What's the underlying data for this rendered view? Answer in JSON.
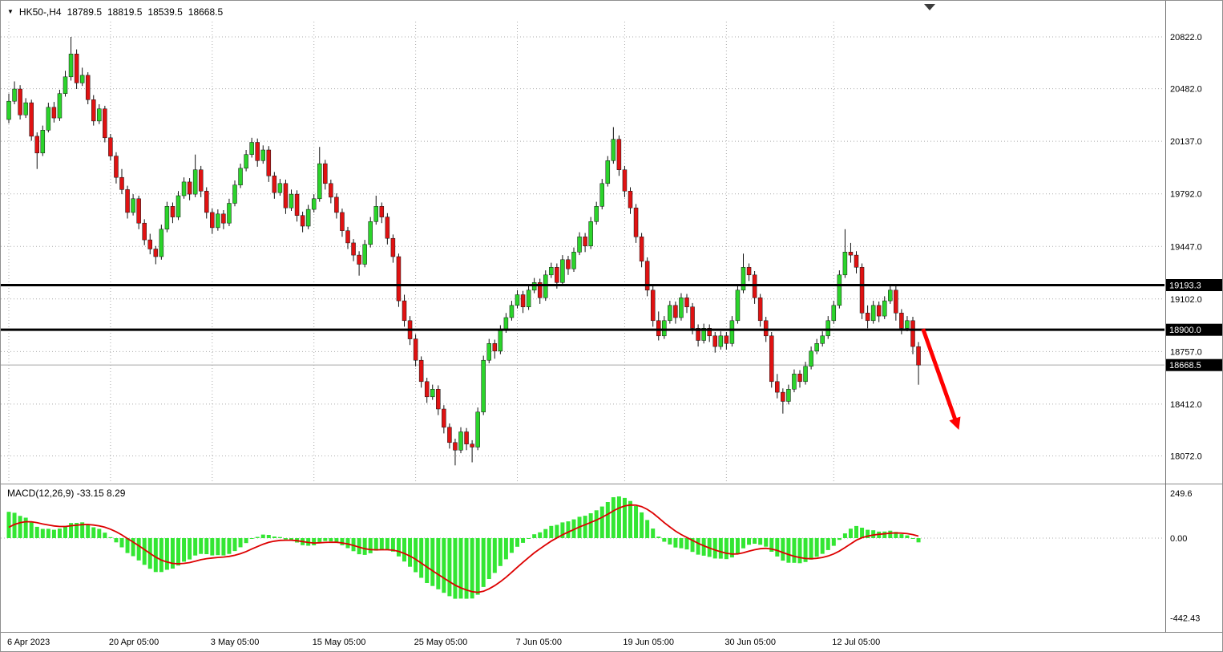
{
  "header": {
    "collapse_icon": "▼",
    "symbol_period": "HK50-,H4",
    "open": "18789.5",
    "high": "18819.5",
    "low": "18539.5",
    "close": "18668.5"
  },
  "chart_data": {
    "type": "candlestick",
    "title": "HK50-,H4",
    "timeframe": "H4",
    "colors": {
      "up": "#2bd42b",
      "down": "#e01212",
      "wick": "#111111",
      "grid": "#ababab",
      "last_price_line": "#a6a6a6",
      "level": "#000000",
      "signal": "#dd0000",
      "histogram": "#33e633",
      "arrow": "#ff0000",
      "axis_text": "#000000",
      "tag_bg": "#000000",
      "tag_text": "#ffffff"
    },
    "y_axis": {
      "ticks": [
        "20822.0",
        "20482.0",
        "20137.0",
        "19792.0",
        "19447.0",
        "19102.0",
        "18757.0",
        "18412.0",
        "18072.0"
      ]
    },
    "x_axis": {
      "labels": [
        {
          "text": "6 Apr 2023",
          "bar": 0
        },
        {
          "text": "20 Apr 05:00",
          "bar": 18
        },
        {
          "text": "3 May 05:00",
          "bar": 36
        },
        {
          "text": "15 May 05:00",
          "bar": 54
        },
        {
          "text": "25 May 05:00",
          "bar": 72
        },
        {
          "text": "7 Jun 05:00",
          "bar": 90
        },
        {
          "text": "19 Jun 05:00",
          "bar": 109
        },
        {
          "text": "30 Jun 05:00",
          "bar": 127
        },
        {
          "text": "12 Jul 05:00",
          "bar": 146
        }
      ]
    },
    "levels": [
      {
        "value": 19193.3,
        "label": "19193.3",
        "color": "#000000"
      },
      {
        "value": 18900.0,
        "label": "18900.0",
        "color": "#000000"
      }
    ],
    "last_price": {
      "value": 18668.5,
      "label": "18668.5"
    },
    "candles": [
      [
        20280,
        20450,
        20255,
        20400
      ],
      [
        20400,
        20530,
        20380,
        20480
      ],
      [
        20480,
        20505,
        20280,
        20310
      ],
      [
        20310,
        20420,
        20290,
        20390
      ],
      [
        20390,
        20410,
        20140,
        20170
      ],
      [
        20170,
        20195,
        19955,
        20060
      ],
      [
        20060,
        20240,
        20040,
        20210
      ],
      [
        20210,
        20390,
        20195,
        20360
      ],
      [
        20360,
        20395,
        20260,
        20290
      ],
      [
        20290,
        20475,
        20270,
        20450
      ],
      [
        20450,
        20600,
        20430,
        20560
      ],
      [
        20560,
        20822,
        20535,
        20710
      ],
      [
        20710,
        20740,
        20480,
        20520
      ],
      [
        20520,
        20620,
        20500,
        20570
      ],
      [
        20570,
        20590,
        20380,
        20410
      ],
      [
        20410,
        20440,
        20240,
        20270
      ],
      [
        20270,
        20380,
        20250,
        20350
      ],
      [
        20350,
        20370,
        20130,
        20160
      ],
      [
        20160,
        20185,
        20010,
        20040
      ],
      [
        20040,
        20065,
        19860,
        19900
      ],
      [
        19900,
        19955,
        19790,
        19820
      ],
      [
        19820,
        19845,
        19630,
        19670
      ],
      [
        19670,
        19790,
        19650,
        19760
      ],
      [
        19760,
        19780,
        19560,
        19600
      ],
      [
        19600,
        19625,
        19455,
        19490
      ],
      [
        19490,
        19530,
        19395,
        19430
      ],
      [
        19430,
        19450,
        19330,
        19380
      ],
      [
        19380,
        19590,
        19360,
        19560
      ],
      [
        19560,
        19740,
        19540,
        19710
      ],
      [
        19710,
        19735,
        19600,
        19640
      ],
      [
        19640,
        19810,
        19620,
        19780
      ],
      [
        19780,
        19900,
        19760,
        19870
      ],
      [
        19870,
        19895,
        19750,
        19790
      ],
      [
        19790,
        20050,
        19770,
        19950
      ],
      [
        19950,
        19975,
        19770,
        19810
      ],
      [
        19810,
        19835,
        19630,
        19670
      ],
      [
        19670,
        19695,
        19530,
        19570
      ],
      [
        19570,
        19690,
        19550,
        19660
      ],
      [
        19660,
        19685,
        19560,
        19600
      ],
      [
        19600,
        19760,
        19580,
        19730
      ],
      [
        19730,
        19880,
        19710,
        19850
      ],
      [
        19850,
        19990,
        19830,
        19960
      ],
      [
        19960,
        20080,
        19940,
        20050
      ],
      [
        20050,
        20160,
        20030,
        20130
      ],
      [
        20130,
        20155,
        19970,
        20010
      ],
      [
        20010,
        20110,
        19990,
        20080
      ],
      [
        20080,
        20105,
        19870,
        19910
      ],
      [
        19910,
        19935,
        19760,
        19800
      ],
      [
        19800,
        19890,
        19780,
        19860
      ],
      [
        19860,
        19885,
        19660,
        19700
      ],
      [
        19700,
        19820,
        19680,
        19790
      ],
      [
        19790,
        19815,
        19610,
        19650
      ],
      [
        19650,
        19675,
        19540,
        19580
      ],
      [
        19580,
        19720,
        19560,
        19690
      ],
      [
        19690,
        19790,
        19670,
        19760
      ],
      [
        19760,
        20100,
        19740,
        19990
      ],
      [
        19990,
        20015,
        19820,
        19860
      ],
      [
        19860,
        19885,
        19730,
        19770
      ],
      [
        19770,
        19795,
        19630,
        19670
      ],
      [
        19670,
        19695,
        19510,
        19550
      ],
      [
        19550,
        19575,
        19430,
        19470
      ],
      [
        19470,
        19495,
        19350,
        19390
      ],
      [
        19390,
        19415,
        19255,
        19330
      ],
      [
        19330,
        19490,
        19310,
        19460
      ],
      [
        19460,
        19640,
        19440,
        19610
      ],
      [
        19610,
        19780,
        19590,
        19710
      ],
      [
        19710,
        19735,
        19600,
        19640
      ],
      [
        19640,
        19665,
        19460,
        19500
      ],
      [
        19500,
        19525,
        19340,
        19380
      ],
      [
        19380,
        19400,
        19050,
        19090
      ],
      [
        19090,
        19130,
        18920,
        18960
      ],
      [
        18960,
        18990,
        18800,
        18840
      ],
      [
        18840,
        18870,
        18660,
        18700
      ],
      [
        18700,
        18725,
        18520,
        18560
      ],
      [
        18560,
        18585,
        18420,
        18460
      ],
      [
        18460,
        18540,
        18440,
        18510
      ],
      [
        18510,
        18535,
        18340,
        18380
      ],
      [
        18380,
        18405,
        18220,
        18260
      ],
      [
        18260,
        18285,
        18120,
        18160
      ],
      [
        18160,
        18185,
        18010,
        18110
      ],
      [
        18110,
        18260,
        18090,
        18230
      ],
      [
        18230,
        18255,
        18110,
        18150
      ],
      [
        18150,
        18175,
        18030,
        18130
      ],
      [
        18130,
        18390,
        18110,
        18360
      ],
      [
        18360,
        18730,
        18340,
        18700
      ],
      [
        18700,
        18840,
        18680,
        18810
      ],
      [
        18810,
        18835,
        18710,
        18760
      ],
      [
        18760,
        18930,
        18740,
        18900
      ],
      [
        18900,
        19010,
        18880,
        18980
      ],
      [
        18980,
        19090,
        18960,
        19060
      ],
      [
        19060,
        19160,
        19040,
        19130
      ],
      [
        19130,
        19155,
        19010,
        19050
      ],
      [
        19050,
        19190,
        19030,
        19160
      ],
      [
        19160,
        19240,
        19140,
        19210
      ],
      [
        19210,
        19235,
        19070,
        19110
      ],
      [
        19110,
        19290,
        19090,
        19260
      ],
      [
        19260,
        19340,
        19240,
        19310
      ],
      [
        19310,
        19335,
        19170,
        19210
      ],
      [
        19210,
        19390,
        19190,
        19360
      ],
      [
        19360,
        19385,
        19260,
        19300
      ],
      [
        19300,
        19440,
        19280,
        19410
      ],
      [
        19410,
        19540,
        19390,
        19510
      ],
      [
        19510,
        19535,
        19410,
        19450
      ],
      [
        19450,
        19640,
        19430,
        19610
      ],
      [
        19610,
        19740,
        19590,
        19710
      ],
      [
        19710,
        19890,
        19690,
        19860
      ],
      [
        19860,
        20040,
        19840,
        20010
      ],
      [
        20010,
        20230,
        19990,
        20150
      ],
      [
        20150,
        20175,
        19910,
        19950
      ],
      [
        19950,
        19975,
        19770,
        19810
      ],
      [
        19810,
        19835,
        19660,
        19700
      ],
      [
        19700,
        19725,
        19470,
        19510
      ],
      [
        19510,
        19535,
        19310,
        19350
      ],
      [
        19350,
        19375,
        19120,
        19160
      ],
      [
        19160,
        19185,
        18920,
        18960
      ],
      [
        18960,
        19020,
        18830,
        18860
      ],
      [
        18860,
        18990,
        18840,
        18960
      ],
      [
        18960,
        19090,
        18940,
        19060
      ],
      [
        19060,
        19085,
        18940,
        18980
      ],
      [
        18980,
        19140,
        18960,
        19110
      ],
      [
        19110,
        19135,
        19010,
        19050
      ],
      [
        19050,
        19075,
        18870,
        18910
      ],
      [
        18910,
        18935,
        18790,
        18830
      ],
      [
        18830,
        18940,
        18810,
        18910
      ],
      [
        18910,
        18935,
        18820,
        18860
      ],
      [
        18860,
        18885,
        18750,
        18790
      ],
      [
        18790,
        18890,
        18770,
        18860
      ],
      [
        18860,
        18885,
        18770,
        18810
      ],
      [
        18810,
        18990,
        18790,
        18960
      ],
      [
        18960,
        19190,
        18940,
        19160
      ],
      [
        19160,
        19400,
        19140,
        19310
      ],
      [
        19310,
        19335,
        19220,
        19260
      ],
      [
        19260,
        19285,
        19070,
        19110
      ],
      [
        19110,
        19135,
        18920,
        18960
      ],
      [
        18960,
        18985,
        18820,
        18860
      ],
      [
        18860,
        18885,
        18520,
        18560
      ],
      [
        18560,
        18610,
        18450,
        18490
      ],
      [
        18490,
        18515,
        18350,
        18430
      ],
      [
        18430,
        18540,
        18410,
        18510
      ],
      [
        18510,
        18640,
        18490,
        18610
      ],
      [
        18610,
        18635,
        18520,
        18560
      ],
      [
        18560,
        18690,
        18540,
        18660
      ],
      [
        18660,
        18790,
        18640,
        18760
      ],
      [
        18760,
        18840,
        18740,
        18810
      ],
      [
        18810,
        18890,
        18790,
        18860
      ],
      [
        18860,
        18990,
        18840,
        18960
      ],
      [
        18960,
        19090,
        18940,
        19060
      ],
      [
        19060,
        19290,
        19040,
        19260
      ],
      [
        19260,
        19560,
        19240,
        19410
      ],
      [
        19410,
        19470,
        19340,
        19390
      ],
      [
        19390,
        19415,
        19270,
        19310
      ],
      [
        19310,
        19335,
        18970,
        19010
      ],
      [
        19010,
        19060,
        18910,
        18960
      ],
      [
        18960,
        19090,
        18940,
        19060
      ],
      [
        19060,
        19085,
        18950,
        18990
      ],
      [
        18990,
        19120,
        18970,
        19090
      ],
      [
        19090,
        19190,
        19070,
        19160
      ],
      [
        19160,
        19185,
        18960,
        19010
      ],
      [
        19010,
        19035,
        18870,
        18910
      ],
      [
        18910,
        18990,
        18890,
        18960
      ],
      [
        18960,
        18985,
        18740,
        18790
      ],
      [
        18789.5,
        18819.5,
        18539.5,
        18668.5
      ]
    ],
    "macd": {
      "title": "MACD(12,26,9) -33.15 8.29",
      "params": {
        "fast": 12,
        "slow": 26,
        "signal_period": 9,
        "seed_macd": 185,
        "seed_signal": 45
      },
      "ticks": [
        {
          "value": 249.6,
          "label": "249.6"
        },
        {
          "value": 0,
          "label": "0.00"
        },
        {
          "value": -442.43,
          "label": "-442.43"
        }
      ]
    },
    "annotations": [
      {
        "type": "arrow",
        "from": {
          "bar": 161.8,
          "price": 18905
        },
        "to": {
          "bar": 167.5,
          "price": 18310
        },
        "color": "#ff0000"
      }
    ]
  }
}
